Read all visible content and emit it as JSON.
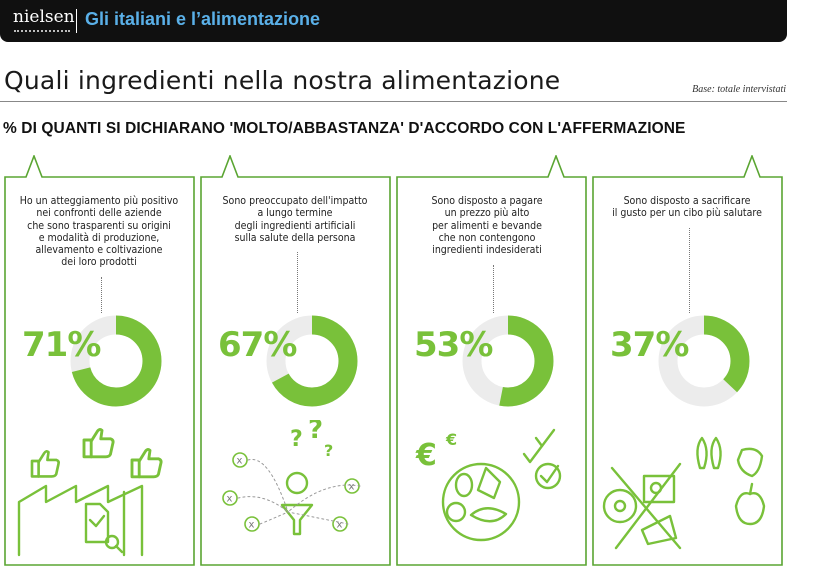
{
  "header": {
    "brand": "nielsen",
    "title": "Gli italiani e l’alimentazione"
  },
  "page_title": "Quali ingredienti nella nostra alimentazione",
  "base_note": "Base: totale intervistati",
  "question": "% DI QUANTI SI DICHIARANO 'MOLTO/ABBASTANZA' D'ACCORDO CON L'AFFERMAZIONE",
  "colors": {
    "accent": "#79c13a",
    "frame": "#5aa532",
    "track": "#ececec",
    "topbar": "#101010",
    "title_blue": "#5ab0e8"
  },
  "chart_data": {
    "type": "donut",
    "categories": [
      "Ho un atteggiamento più positivo nei confronti delle aziende che sono trasparenti su origini e modalità di produzione, allevamento e coltivazione dei loro prodotti",
      "Sono preoccupato dell'impatto a lungo termine degli ingredienti artificiali sulla salute della persona",
      "Sono disposto a pagare un prezzo più alto per alimenti e bevande che non contengono ingredienti indesiderati",
      "Sono disposto a sacrificare il gusto per un cibo più salutare"
    ],
    "values": [
      71,
      67,
      53,
      37
    ],
    "unit": "%"
  },
  "panels": [
    {
      "lines": [
        "Ho un atteggiamento più positivo",
        "nei confronti delle aziende",
        "che sono trasparenti su origini",
        "e modalità di produzione,",
        "allevamento e coltivazione",
        "dei loro prodotti"
      ],
      "label": "71%",
      "value": 71,
      "icon": "factory-thumbs-up-icon"
    },
    {
      "lines": [
        "Sono preoccupato dell'impatto",
        "a lungo termine",
        "degli ingredienti artificiali",
        "sulla salute della persona"
      ],
      "label": "67%",
      "value": 67,
      "icon": "person-question-filter-icon"
    },
    {
      "lines": [
        "Sono disposto a pagare",
        "un prezzo più alto",
        "per alimenti e bevande",
        "che non contengono",
        "ingredienti indesiderati"
      ],
      "label": "53%",
      "value": 53,
      "icon": "euro-food-checkmarks-icon"
    },
    {
      "lines": [
        "Sono disposto a sacrificare",
        "il gusto per un cibo più salutare"
      ],
      "label": "37%",
      "value": 37,
      "icon": "crossed-junkfood-healthy-food-icon"
    }
  ],
  "illus_glyphs": {
    "euro": "€",
    "question_marks": [
      "?",
      "?",
      "?"
    ],
    "x_mark": "x"
  }
}
